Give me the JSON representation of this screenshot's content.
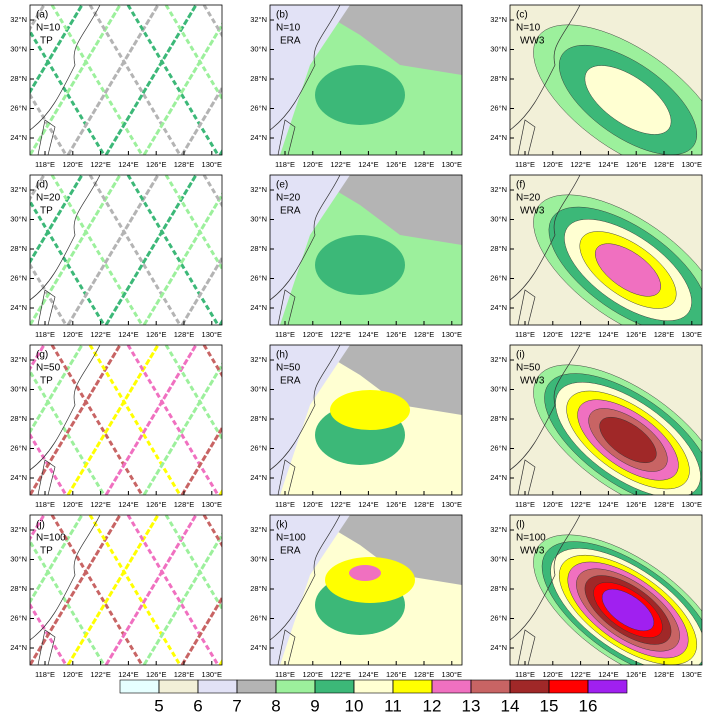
{
  "panels": [
    {
      "label": "(a)",
      "n": "N=10",
      "source": "TP"
    },
    {
      "label": "(b)",
      "n": "N=10",
      "source": "ERA"
    },
    {
      "label": "(c)",
      "n": "N=10",
      "source": "WW3"
    },
    {
      "label": "(d)",
      "n": "N=20",
      "source": "TP"
    },
    {
      "label": "(e)",
      "n": "N=20",
      "source": "ERA"
    },
    {
      "label": "(f)",
      "n": "N=20",
      "source": "WW3"
    },
    {
      "label": "(g)",
      "n": "N=50",
      "source": "TP"
    },
    {
      "label": "(h)",
      "n": "N=50",
      "source": "ERA"
    },
    {
      "label": "(i)",
      "n": "N=50",
      "source": "WW3"
    },
    {
      "label": "(j)",
      "n": "N=100",
      "source": "TP"
    },
    {
      "label": "(k)",
      "n": "N=100",
      "source": "ERA"
    },
    {
      "label": "(l)",
      "n": "N=100",
      "source": "WW3"
    }
  ],
  "lat_ticks": [
    "32°N",
    "30°N",
    "28°N",
    "26°N",
    "24°N"
  ],
  "lon_ticks": [
    "118°E",
    "120°E",
    "122°E",
    "124°E",
    "126°E",
    "128°E",
    "130°E"
  ],
  "colorbar": {
    "levels": [
      5,
      6,
      7,
      8,
      9,
      10,
      11,
      12,
      13,
      14,
      15,
      16
    ],
    "colors": [
      "#e6ffff",
      "#f2f0d8",
      "#e2e2f6",
      "#b4b4b4",
      "#9cf09c",
      "#3cb878",
      "#ffffd2",
      "#ffff00",
      "#f070c0",
      "#c86464",
      "#a02828",
      "#ff0000",
      "#a020f0"
    ]
  }
}
